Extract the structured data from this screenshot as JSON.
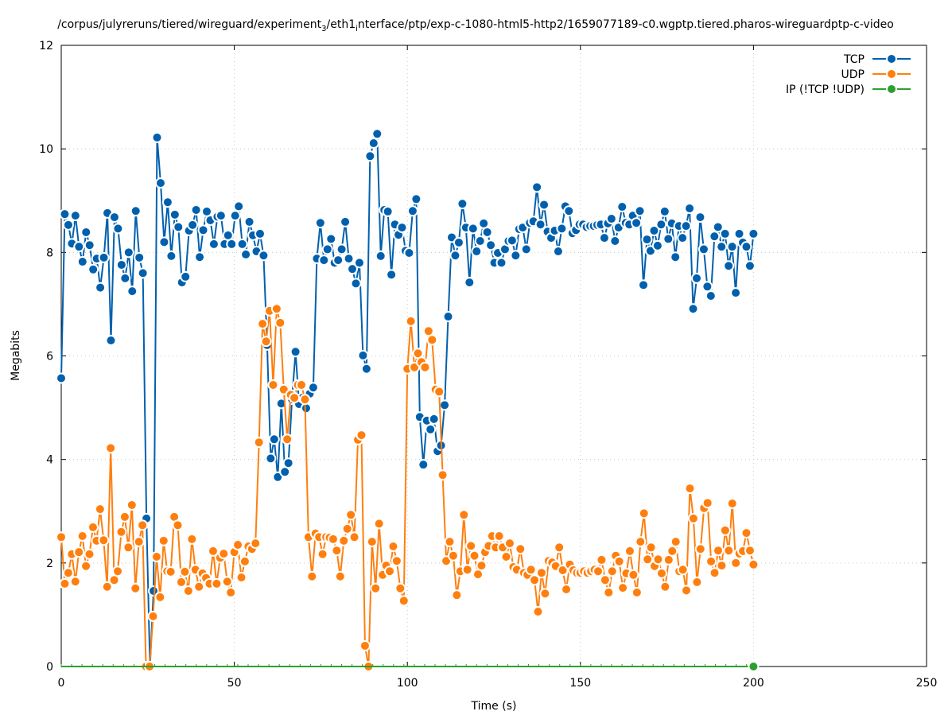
{
  "chart_data": {
    "type": "line",
    "title": {
      "part1": "/corpus/julyreruns/tiered/wireguard/experiment",
      "sub1": "3",
      "part2": "/eth1",
      "sub2": "i",
      "part3": "nterface/ptp/exp-c-1080-html5-http2/1659077189-c0.wgptp.tiered.pharos-wireguardptp-c-video"
    },
    "xlabel": "Time (s)",
    "ylabel": "Megabits",
    "xlim": [
      0,
      250
    ],
    "ylim": [
      0,
      12
    ],
    "xticks": [
      "0",
      "50",
      "100",
      "150",
      "200",
      "250"
    ],
    "yticks": [
      "0",
      "2",
      "4",
      "6",
      "8",
      "10",
      "12"
    ],
    "grid": true,
    "legend_position": "top-right",
    "series": [
      {
        "name": "TCP",
        "color": "#0060ad",
        "time_range": [
          0,
          200
        ],
        "values": [
          5.57,
          8.74,
          8.53,
          8.17,
          8.71,
          8.11,
          7.82,
          8.39,
          8.14,
          7.67,
          7.88,
          7.32,
          7.9,
          8.76,
          6.3,
          8.68,
          8.46,
          7.76,
          7.5,
          8.0,
          7.25,
          8.8,
          7.9,
          7.6,
          2.86,
          0.0,
          1.46,
          10.22,
          9.34,
          8.2,
          8.97,
          7.93,
          8.73,
          8.49,
          7.42,
          7.53,
          8.42,
          8.53,
          8.82,
          7.91,
          8.43,
          8.79,
          8.62,
          8.16,
          8.69,
          8.71,
          8.16,
          8.33,
          8.16,
          8.71,
          8.89,
          8.16,
          7.96,
          8.59,
          8.33,
          8.02,
          8.36,
          7.94,
          6.21,
          4.02,
          4.39,
          3.66,
          5.08,
          3.76,
          3.93,
          5.16,
          6.08,
          5.07,
          5.19,
          4.99,
          5.27,
          5.39,
          7.88,
          8.57,
          7.85,
          8.06,
          8.26,
          7.8,
          7.85,
          8.06,
          8.59,
          7.88,
          7.68,
          7.4,
          7.8,
          6.01,
          5.75,
          9.86,
          10.11,
          10.29,
          7.93,
          8.82,
          8.79,
          7.57,
          8.54,
          8.34,
          8.48,
          8.03,
          7.99,
          8.8,
          9.03,
          4.82,
          3.9,
          4.75,
          4.58,
          4.78,
          4.16,
          4.27,
          5.05,
          6.76,
          8.29,
          7.94,
          8.19,
          8.94,
          8.48,
          7.42,
          8.46,
          8.02,
          8.22,
          8.56,
          8.39,
          8.14,
          7.8,
          7.99,
          7.8,
          8.06,
          8.22,
          8.23,
          7.94,
          8.45,
          8.48,
          8.06,
          8.57,
          8.6,
          9.26,
          8.54,
          8.92,
          8.4,
          8.28,
          8.42,
          8.02,
          8.46,
          8.89,
          8.8,
          8.37,
          8.43,
          8.54,
          8.54,
          8.49,
          8.51,
          8.51,
          8.53,
          8.54,
          8.28,
          8.56,
          8.65,
          8.22,
          8.48,
          8.88,
          8.57,
          8.54,
          8.71,
          8.57,
          8.8,
          7.37,
          8.25,
          8.03,
          8.42,
          8.13,
          8.54,
          8.79,
          8.26,
          8.56,
          7.91,
          8.51,
          8.28,
          8.51,
          8.85,
          6.91,
          7.5,
          8.68,
          8.06,
          7.34,
          7.16,
          8.31,
          8.49,
          8.11,
          8.36,
          7.74,
          8.11,
          7.22,
          8.36,
          8.19,
          8.11,
          7.74,
          8.36
        ]
      },
      {
        "name": "UDP",
        "color": "#ff7f0e",
        "time_range": [
          0,
          200
        ],
        "values": [
          2.5,
          1.6,
          1.81,
          2.17,
          1.64,
          2.21,
          2.52,
          1.94,
          2.17,
          2.69,
          2.43,
          3.04,
          2.44,
          1.54,
          4.22,
          1.67,
          1.84,
          2.6,
          2.89,
          2.3,
          3.12,
          1.51,
          2.41,
          2.73,
          0.0,
          0.0,
          0.97,
          2.12,
          1.34,
          2.43,
          1.84,
          1.83,
          2.89,
          2.73,
          1.63,
          1.83,
          1.46,
          2.46,
          1.87,
          1.54,
          1.8,
          1.71,
          1.6,
          2.23,
          1.6,
          2.1,
          2.18,
          1.64,
          1.43,
          2.21,
          2.35,
          1.72,
          2.03,
          2.32,
          2.27,
          2.38,
          4.33,
          6.62,
          6.28,
          6.87,
          5.44,
          6.91,
          6.64,
          5.35,
          4.39,
          5.25,
          5.19,
          5.44,
          5.44,
          5.16,
          2.5,
          1.74,
          2.57,
          2.5,
          2.17,
          2.5,
          2.49,
          2.46,
          2.24,
          1.74,
          2.43,
          2.66,
          2.93,
          2.5,
          4.38,
          4.47,
          0.4,
          0.0,
          2.41,
          1.51,
          2.76,
          1.77,
          1.95,
          1.84,
          2.32,
          2.04,
          1.51,
          1.27,
          5.75,
          6.67,
          5.78,
          6.05,
          5.88,
          5.78,
          6.48,
          6.31,
          5.35,
          5.31,
          3.7,
          2.04,
          2.41,
          2.14,
          1.38,
          1.84,
          2.93,
          1.87,
          2.33,
          2.14,
          1.78,
          1.95,
          2.21,
          2.33,
          2.52,
          2.3,
          2.52,
          2.3,
          2.12,
          2.38,
          1.92,
          1.87,
          2.27,
          1.81,
          1.77,
          1.87,
          1.67,
          1.06,
          1.81,
          1.41,
          2.04,
          2.01,
          1.94,
          2.3,
          1.86,
          1.49,
          1.97,
          1.86,
          1.81,
          1.81,
          1.84,
          1.81,
          1.84,
          1.87,
          1.84,
          2.06,
          1.67,
          1.43,
          1.84,
          2.14,
          2.03,
          1.52,
          1.8,
          2.23,
          1.77,
          1.43,
          2.41,
          2.96,
          2.07,
          2.3,
          1.94,
          2.07,
          1.8,
          1.54,
          2.06,
          2.23,
          2.41,
          1.84,
          1.87,
          1.47,
          3.44,
          2.86,
          1.63,
          2.27,
          3.06,
          3.16,
          2.03,
          1.81,
          2.24,
          1.95,
          2.63,
          2.24,
          3.15,
          2.0,
          2.18,
          2.23,
          2.58,
          2.24,
          1.97
        ]
      },
      {
        "name": "IP (!TCP  !UDP)",
        "color": "#2ca02c",
        "time_range": [
          0,
          200
        ],
        "values": [
          0
        ],
        "marker_at": [
          200,
          0
        ]
      }
    ]
  }
}
